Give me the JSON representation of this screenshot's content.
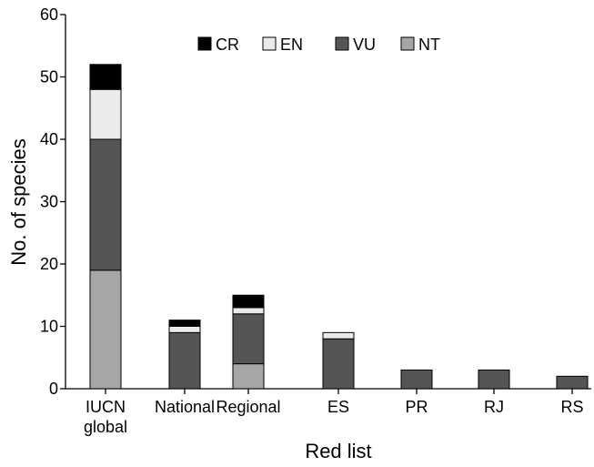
{
  "chart_data": {
    "type": "bar",
    "stacked": true,
    "categories": [
      [
        "IUCN",
        "global"
      ],
      [
        "National"
      ],
      [
        "Regional"
      ],
      [
        "ES"
      ],
      [
        "PR"
      ],
      [
        "RJ"
      ],
      [
        "RS"
      ]
    ],
    "series": [
      {
        "name": "NT",
        "color": "#a6a6a6",
        "values": [
          19,
          0,
          4,
          0,
          0,
          0,
          0
        ]
      },
      {
        "name": "VU",
        "color": "#555555",
        "values": [
          21,
          9,
          8,
          8,
          3,
          3,
          2
        ]
      },
      {
        "name": "EN",
        "color": "#ebebeb",
        "values": [
          8,
          1,
          1,
          1,
          0,
          0,
          0
        ]
      },
      {
        "name": "CR",
        "color": "#000000",
        "values": [
          4,
          1,
          2,
          0,
          0,
          0,
          0
        ]
      }
    ],
    "legend_order": [
      "CR",
      "EN",
      "VU",
      "NT"
    ],
    "legend_position": "top-right",
    "xlabel": "Red list",
    "ylabel": "No. of species",
    "ylim": [
      0,
      60
    ],
    "yticks": [
      0,
      10,
      20,
      30,
      40,
      50,
      60
    ],
    "grid": false
  }
}
